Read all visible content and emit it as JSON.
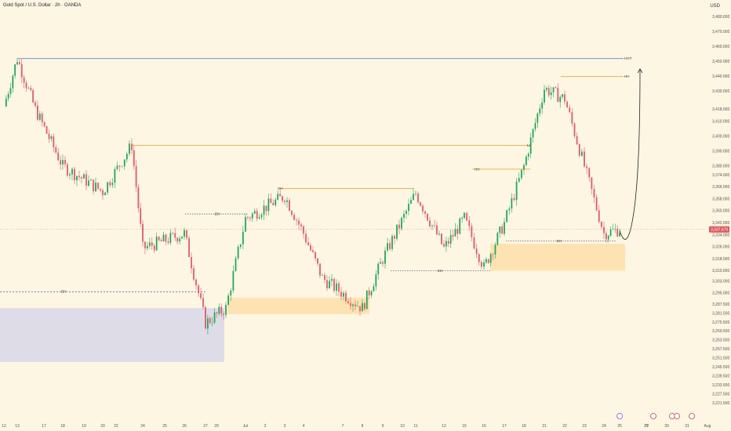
{
  "title": "Gold Spot / U.S. Dollar · 2h · OANDA",
  "currency": "USD",
  "price_label": "3,337.670",
  "chart_data": {
    "type": "candlestick",
    "title": "Gold Spot / U.S. Dollar · 2h · OANDA",
    "ylabel": "USD",
    "ylim": [
      3218.5,
      3487.0
    ],
    "y_ticks": [
      "3,480.000",
      "3,470.000",
      "3,460.000",
      "3,450.000",
      "3,440.000",
      "3,430.000",
      "3,418.000",
      "3,410.000",
      "3,400.000",
      "3,390.000",
      "3,380.000",
      "3,374.000",
      "3,366.000",
      "3,358.000",
      "3,350.000",
      "3,342.000",
      "3,334.000",
      "3,326.000",
      "3,318.000",
      "3,310.000",
      "3,303.000",
      "3,295.000",
      "3,287.500",
      "3,281.500",
      "3,275.500",
      "3,269.500",
      "3,263.500",
      "3,257.500",
      "3,251.500",
      "3,245.500",
      "3,239.500",
      "3,233.500",
      "3,227.500",
      "3,221.500"
    ],
    "x_ticks": [
      "12",
      "13",
      "17",
      "18",
      "19",
      "20",
      "22",
      "24",
      "25",
      "26",
      "27",
      "29",
      "Jul",
      "2",
      "3",
      "4",
      "7",
      "8",
      "9",
      "10",
      "11",
      "12",
      "15",
      "16",
      "17",
      "18",
      "21",
      "22",
      "23",
      "24",
      "25",
      "27",
      "29",
      "30",
      "31",
      "Aug"
    ],
    "levels": [
      {
        "label": "HOT",
        "price": 3452
      },
      {
        "label": "HH",
        "price": 3440
      },
      {
        "label": "LH",
        "price": 3394
      },
      {
        "label": "HH",
        "price": 3378
      },
      {
        "label": "HH",
        "price": 3365
      },
      {
        "label": "EH",
        "price": 3348
      },
      {
        "label": "EH",
        "price": 3296
      },
      {
        "label": "EH",
        "price": 3310
      },
      {
        "label": "EH",
        "price": 3330
      }
    ],
    "zones": [
      {
        "name": "demand zone (blue)",
        "low": 3249,
        "high": 3285
      },
      {
        "name": "demand zone",
        "low": 3281,
        "high": 3292
      },
      {
        "name": "demand zone",
        "low": 3310,
        "high": 3328
      }
    ],
    "ohlc_anchors": [
      {
        "date": "Jun 12",
        "close": 3420
      },
      {
        "date": "Jun 13",
        "close": 3452
      },
      {
        "date": "Jun 16",
        "close": 3418
      },
      {
        "date": "Jun 18",
        "close": 3380
      },
      {
        "date": "Jun 20",
        "close": 3363
      },
      {
        "date": "Jun 22",
        "close": 3394
      },
      {
        "date": "Jun 24",
        "close": 3325
      },
      {
        "date": "Jun 26",
        "close": 3335
      },
      {
        "date": "Jun 27",
        "close": 3275
      },
      {
        "date": "Jun 29",
        "close": 3285
      },
      {
        "date": "Jul 1",
        "close": 3345
      },
      {
        "date": "Jul 3",
        "close": 3360
      },
      {
        "date": "Jul 4",
        "close": 3335
      },
      {
        "date": "Jul 7",
        "close": 3305
      },
      {
        "date": "Jul 9",
        "close": 3285
      },
      {
        "date": "Jul 10",
        "close": 3318
      },
      {
        "date": "Jul 12",
        "close": 3362
      },
      {
        "date": "Jul 15",
        "close": 3325
      },
      {
        "date": "Jul 16",
        "close": 3345
      },
      {
        "date": "Jul 17",
        "close": 3312
      },
      {
        "date": "Jul 18",
        "close": 3342
      },
      {
        "date": "Jul 21",
        "close": 3380
      },
      {
        "date": "Jul 22",
        "close": 3432
      },
      {
        "date": "Jul 23",
        "close": 3425
      },
      {
        "date": "Jul 24",
        "close": 3380
      },
      {
        "date": "Jul 25",
        "close": 3335
      },
      {
        "date": "Jul 27",
        "close": 3337.67
      }
    ],
    "projection": [
      {
        "date": "Jul 27",
        "price": 3337
      },
      {
        "date": "Jul 28",
        "price": 3328
      },
      {
        "date": "Jul 29",
        "price": 3445
      }
    ]
  }
}
